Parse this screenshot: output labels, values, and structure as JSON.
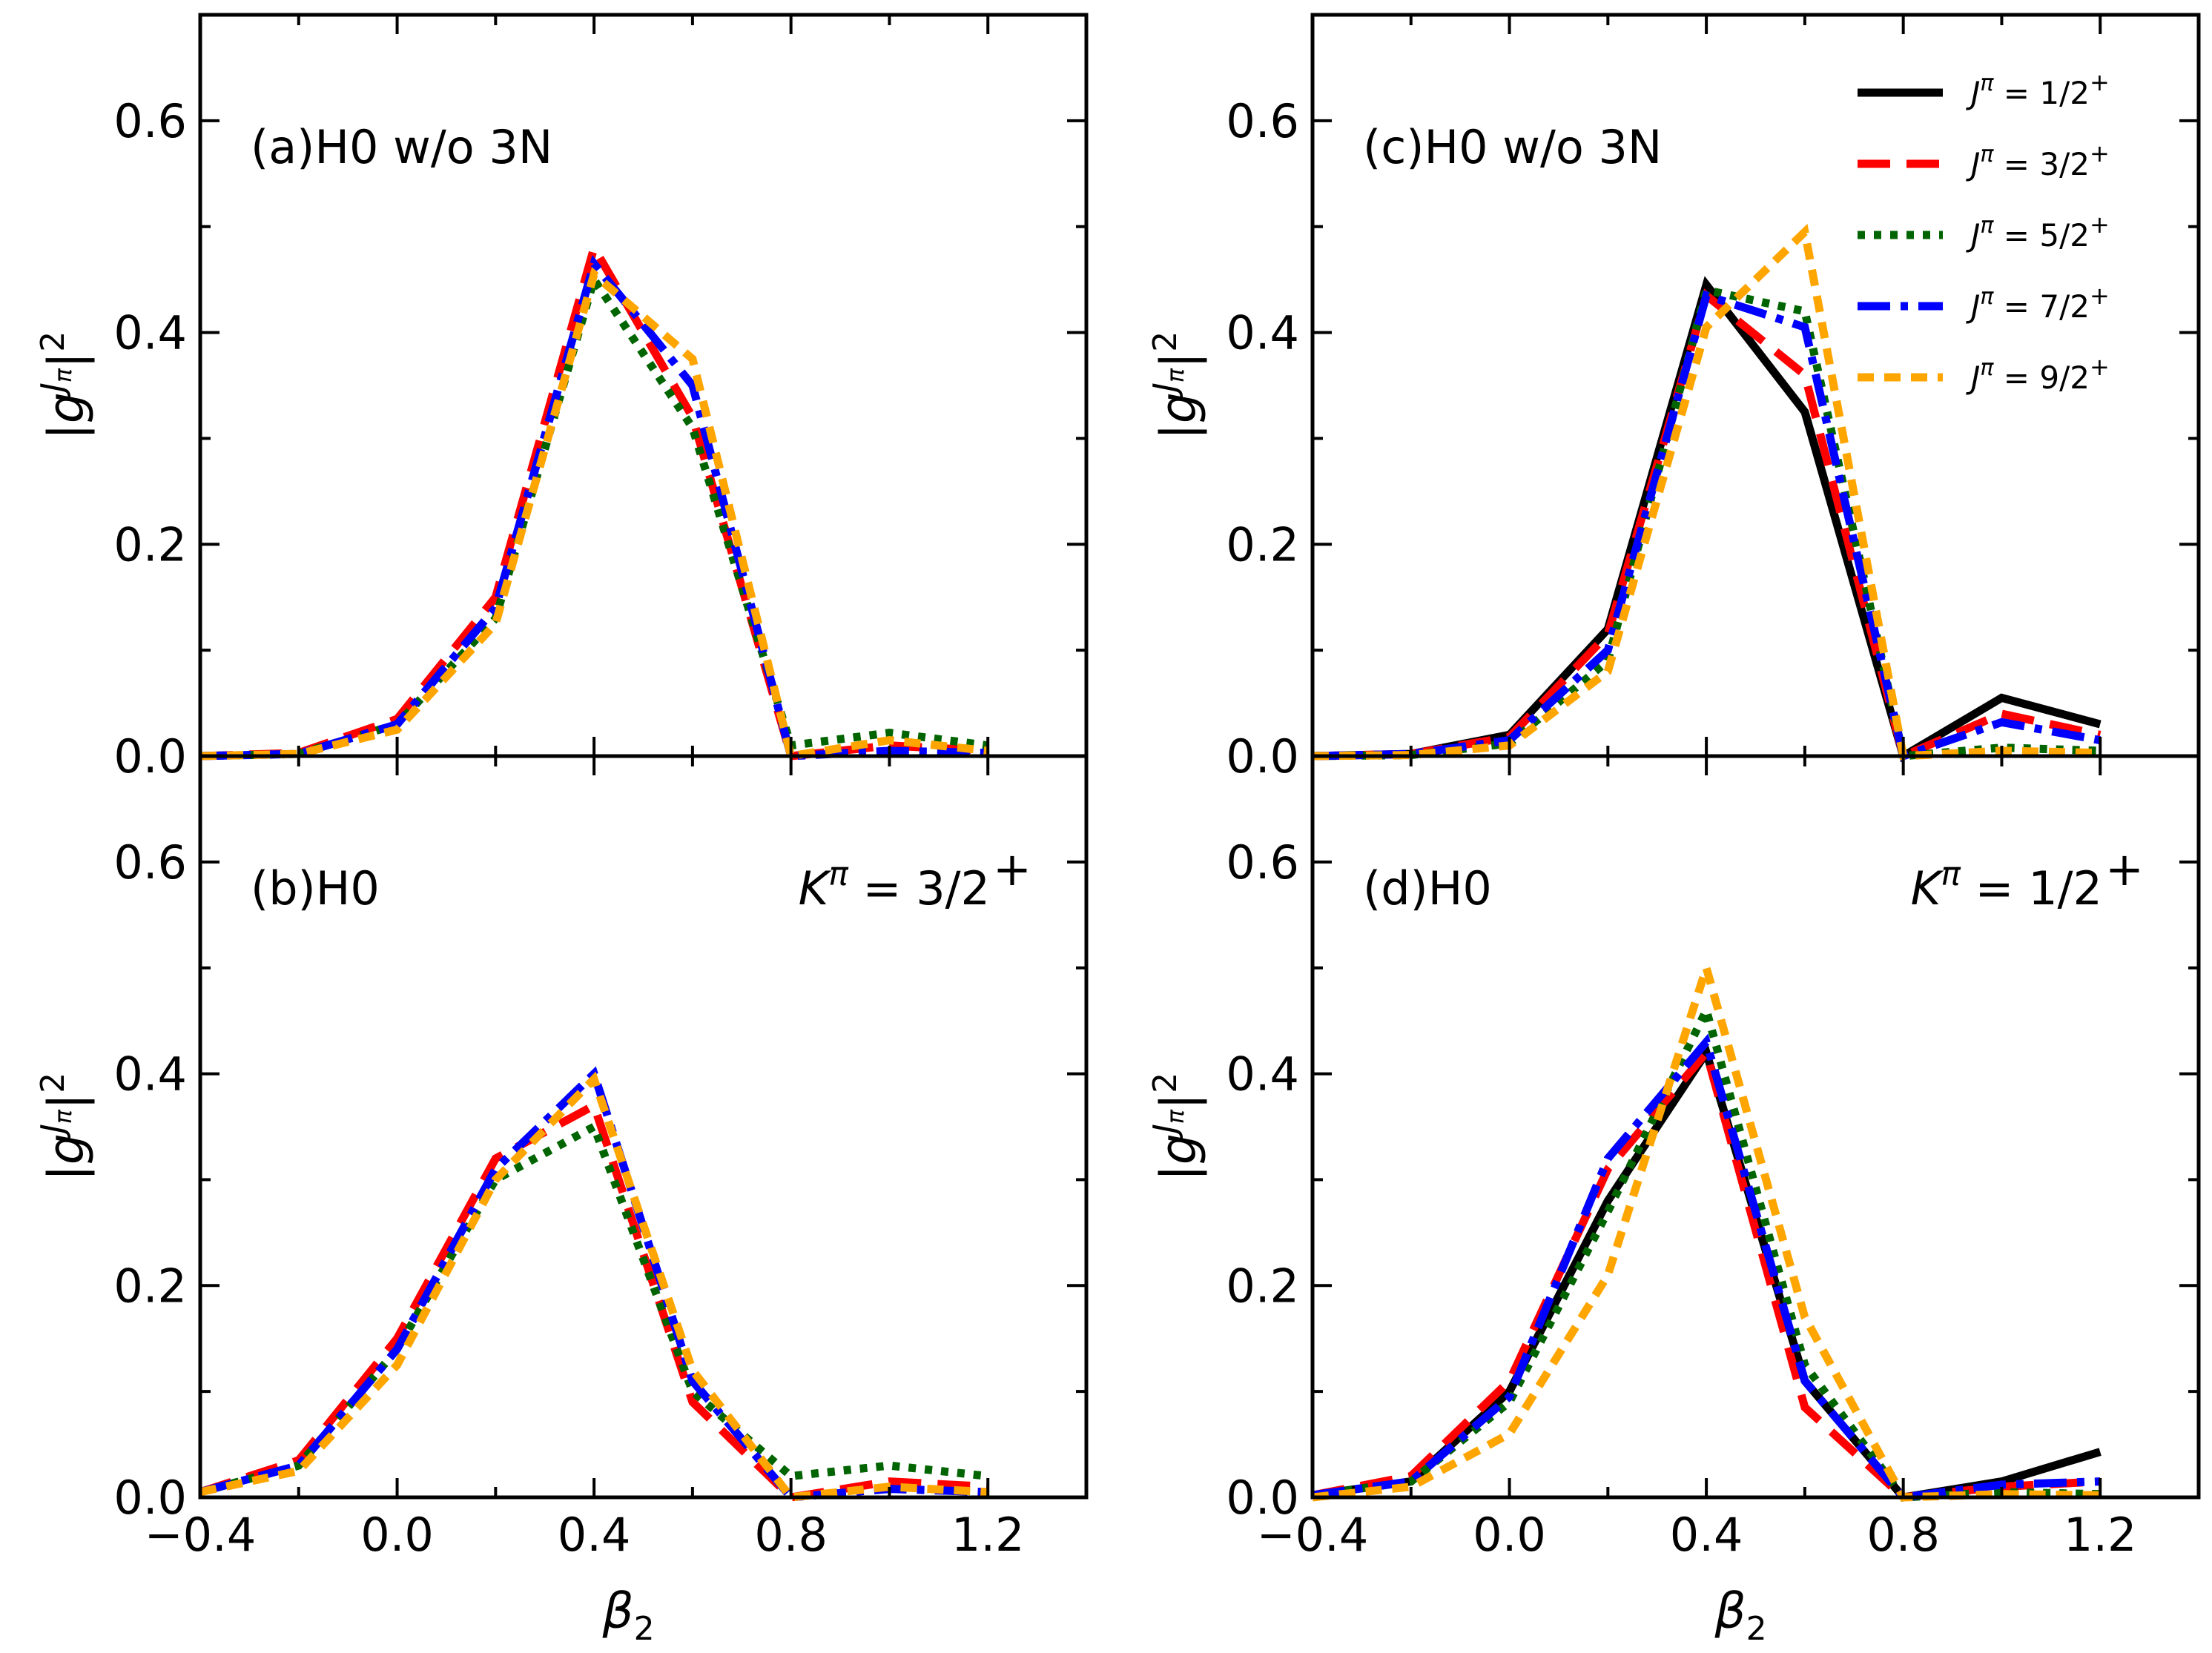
{
  "chart_data": {
    "type": "line",
    "x": [
      -0.4,
      -0.2,
      0.0,
      0.2,
      0.4,
      0.6,
      0.8,
      1.0,
      1.2
    ],
    "xlim": [
      -0.4,
      1.4
    ],
    "ylim": [
      0.0,
      0.7
    ],
    "xticks": [
      "−0.4",
      "0.0",
      "0.4",
      "0.8",
      "1.2"
    ],
    "yticks": [
      "0.0",
      "0.2",
      "0.4",
      "0.6"
    ],
    "xlabel": "β",
    "xlabel_sub": "2",
    "ylabel": {
      "base": "|g",
      "sup": "J",
      "subsup": "π",
      "tail": "|",
      "power": "2"
    },
    "legend": [
      {
        "key": "j12",
        "name": "J",
        "sup": "π",
        "value": " = 1/2",
        "plus": "+",
        "color": "#000000",
        "dash": ""
      },
      {
        "key": "j32",
        "name": "J",
        "sup": "π",
        "value": " = 3/2",
        "plus": "+",
        "color": "#ff0000",
        "dash": "44,22"
      },
      {
        "key": "j52",
        "name": "J",
        "sup": "π",
        "value": " = 5/2",
        "plus": "+",
        "color": "#006400",
        "dash": "10,12"
      },
      {
        "key": "j72",
        "name": "J",
        "sup": "π",
        "value": " = 7/2",
        "plus": "+",
        "color": "#0000ff",
        "dash": "44,14,10,14"
      },
      {
        "key": "j92",
        "name": "J",
        "sup": "π",
        "value": " = 9/2",
        "plus": "+",
        "color": "#ffa500",
        "dash": "22,14"
      }
    ],
    "panels": [
      {
        "id": "a",
        "label": "(a)H0 w/o 3N",
        "k_label": null,
        "series": [
          {
            "key": "j32",
            "values": [
              0.0,
              0.003,
              0.035,
              0.15,
              0.48,
              0.32,
              0.0,
              0.01,
              0.005
            ]
          },
          {
            "key": "j52",
            "values": [
              0.0,
              0.002,
              0.03,
              0.13,
              0.45,
              0.31,
              0.01,
              0.022,
              0.01
            ]
          },
          {
            "key": "j72",
            "values": [
              0.0,
              0.002,
              0.03,
              0.14,
              0.465,
              0.35,
              0.0,
              0.005,
              0.003
            ]
          },
          {
            "key": "j92",
            "values": [
              0.0,
              0.002,
              0.025,
              0.125,
              0.455,
              0.375,
              0.0,
              0.015,
              0.005
            ]
          }
        ]
      },
      {
        "id": "c",
        "label": "(c)H0 w/o 3N",
        "k_label": null,
        "series": [
          {
            "key": "j12",
            "values": [
              0.0,
              0.002,
              0.02,
              0.12,
              0.445,
              0.325,
              0.0,
              0.055,
              0.03
            ]
          },
          {
            "key": "j32",
            "values": [
              0.0,
              0.002,
              0.018,
              0.115,
              0.435,
              0.36,
              0.0,
              0.04,
              0.02
            ]
          },
          {
            "key": "j52",
            "values": [
              0.0,
              0.001,
              0.012,
              0.09,
              0.44,
              0.42,
              0.0,
              0.008,
              0.005
            ]
          },
          {
            "key": "j72",
            "values": [
              0.0,
              0.002,
              0.015,
              0.1,
              0.435,
              0.405,
              0.0,
              0.032,
              0.015
            ]
          },
          {
            "key": "j92",
            "values": [
              0.0,
              0.001,
              0.01,
              0.08,
              0.405,
              0.495,
              0.0,
              0.005,
              0.003
            ]
          }
        ]
      },
      {
        "id": "b",
        "label": "(b)H0",
        "k_label": {
          "name": "K",
          "sup": "π",
          "value": " = 3/2",
          "plus": "+"
        },
        "series": [
          {
            "key": "j32",
            "values": [
              0.005,
              0.035,
              0.15,
              0.32,
              0.37,
              0.09,
              0.0,
              0.015,
              0.01
            ]
          },
          {
            "key": "j52",
            "values": [
              0.005,
              0.03,
              0.14,
              0.3,
              0.35,
              0.1,
              0.02,
              0.03,
              0.02
            ]
          },
          {
            "key": "j72",
            "values": [
              0.005,
              0.03,
              0.14,
              0.31,
              0.4,
              0.11,
              0.0,
              0.008,
              0.005
            ]
          },
          {
            "key": "j92",
            "values": [
              0.005,
              0.025,
              0.125,
              0.3,
              0.395,
              0.12,
              0.0,
              0.01,
              0.005
            ]
          }
        ]
      },
      {
        "id": "d",
        "label": "(d)H0",
        "k_label": {
          "name": "K",
          "sup": "π",
          "value": " = 1/2",
          "plus": "+"
        },
        "series": [
          {
            "key": "j12",
            "values": [
              0.002,
              0.015,
              0.1,
              0.28,
              0.42,
              0.11,
              0.0,
              0.015,
              0.043
            ]
          },
          {
            "key": "j32",
            "values": [
              0.002,
              0.02,
              0.11,
              0.31,
              0.42,
              0.085,
              0.0,
              0.01,
              0.015
            ]
          },
          {
            "key": "j52",
            "values": [
              0.002,
              0.015,
              0.09,
              0.27,
              0.46,
              0.125,
              0.0,
              0.005,
              0.003
            ]
          },
          {
            "key": "j72",
            "values": [
              0.002,
              0.015,
              0.095,
              0.32,
              0.43,
              0.11,
              0.0,
              0.012,
              0.015
            ]
          },
          {
            "key": "j92",
            "values": [
              0.0,
              0.01,
              0.06,
              0.21,
              0.5,
              0.17,
              0.0,
              0.003,
              0.002
            ]
          }
        ]
      }
    ]
  }
}
